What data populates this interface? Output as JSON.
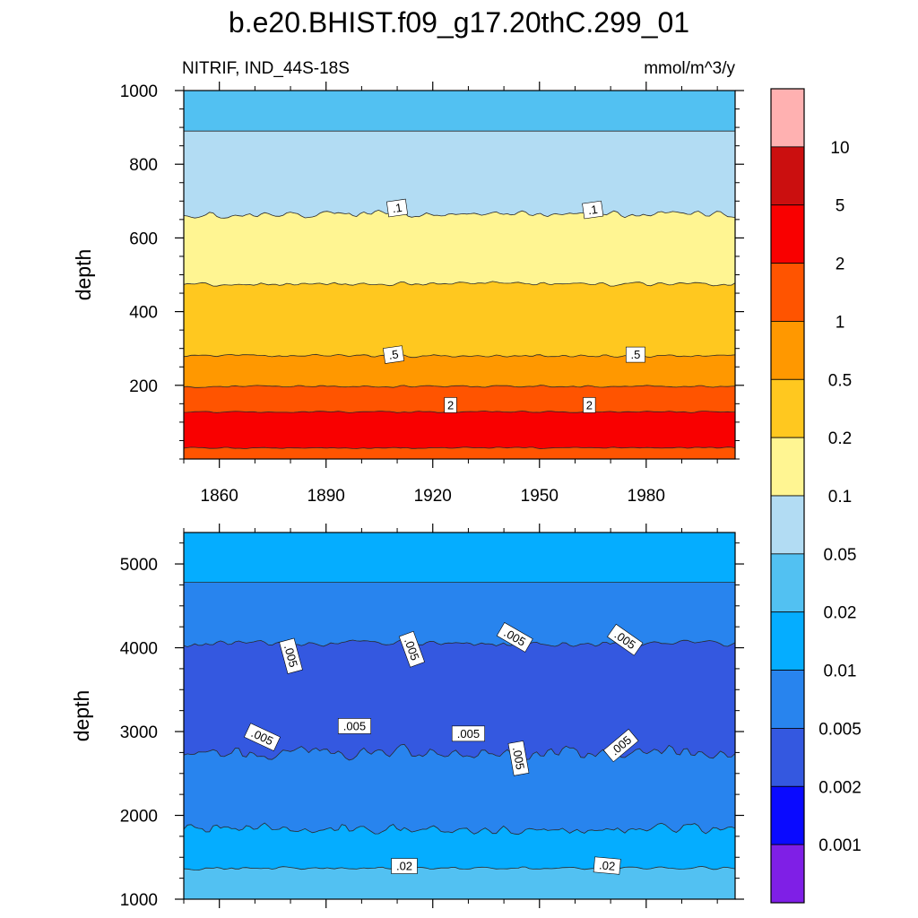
{
  "title": "b.e20.BHIST.f09_g17.20thC.299_01",
  "left_subtitle": "NITRIF, IND_44S-18S",
  "right_subtitle": "mmol/m^3/y",
  "colors": {
    "levels": [
      "#7f1fe6",
      "#0a0aff",
      "#3458e0",
      "#2884ee",
      "#05adff",
      "#52c1f2",
      "#b2dcf3",
      "#fff592",
      "#ffc81f",
      "#ff9800",
      "#ff5400",
      "#f90000",
      "#cb0f0f",
      "#ffb1b1"
    ]
  },
  "chart_data": [
    {
      "type": "heatmap",
      "subtype": "filled-contour",
      "panel": "upper",
      "xlabel": "",
      "ylabel": "depth",
      "xlim": [
        1850,
        2005
      ],
      "ylim": [
        1000,
        0
      ],
      "x_ticks": [
        1860,
        1890,
        1920,
        1950,
        1980
      ],
      "y_ticks": [
        200,
        400,
        600,
        800,
        1000
      ],
      "contour_bands": [
        {
          "top": 0,
          "bottom": 30,
          "color_index": 10,
          "roughness": 2
        },
        {
          "top": 30,
          "bottom": 128,
          "color_index": 11,
          "roughness": 3
        },
        {
          "top": 128,
          "bottom": 197,
          "color_index": 10,
          "roughness": 3
        },
        {
          "top": 197,
          "bottom": 280,
          "color_index": 9,
          "roughness": 4
        },
        {
          "top": 280,
          "bottom": 475,
          "color_index": 8,
          "roughness": 5
        },
        {
          "top": 475,
          "bottom": 665,
          "color_index": 7,
          "roughness": 8
        },
        {
          "top": 665,
          "bottom": 890,
          "color_index": 6,
          "roughness": 12
        },
        {
          "top": 890,
          "bottom": 1000,
          "color_index": 5,
          "roughness": 0
        }
      ],
      "contour_labels": [
        {
          "text": "2",
          "x": 1925,
          "y": 145,
          "angle": 0
        },
        {
          "text": "2",
          "x": 1964,
          "y": 145,
          "angle": 0
        },
        {
          "text": ".5",
          "x": 1909,
          "y": 282,
          "angle": -8
        },
        {
          "text": ".5",
          "x": 1977,
          "y": 282,
          "angle": 0
        },
        {
          "text": ".1",
          "x": 1910,
          "y": 680,
          "angle": -8
        },
        {
          "text": ".1",
          "x": 1965,
          "y": 675,
          "angle": -8
        }
      ]
    },
    {
      "type": "heatmap",
      "subtype": "filled-contour",
      "panel": "lower",
      "xlabel": "",
      "ylabel": "depth",
      "xlim": [
        1850,
        2005
      ],
      "ylim": [
        5375,
        1000
      ],
      "x_ticks": [
        1860,
        1890,
        1920,
        1950,
        1980
      ],
      "y_ticks": [
        1000,
        2000,
        3000,
        4000,
        5000
      ],
      "contour_bands": [
        {
          "top": 1000,
          "bottom": 1370,
          "color_index": 5,
          "roughness": 15
        },
        {
          "top": 1370,
          "bottom": 1840,
          "color_index": 4,
          "roughness": 25
        },
        {
          "top": 1840,
          "bottom": 2750,
          "color_index": 3,
          "roughness": 90
        },
        {
          "top": 2750,
          "bottom": 4050,
          "color_index": 2,
          "roughness": 110
        },
        {
          "top": 4050,
          "bottom": 4780,
          "color_index": 3,
          "roughness": 50
        },
        {
          "top": 4780,
          "bottom": 5375,
          "color_index": 4,
          "roughness": 0
        }
      ],
      "contour_labels": [
        {
          "text": ".02",
          "x": 1912,
          "y": 1390,
          "angle": 0
        },
        {
          "text": ".02",
          "x": 1969,
          "y": 1395,
          "angle": 5
        },
        {
          "text": ".005",
          "x": 1872,
          "y": 2930,
          "angle": 25
        },
        {
          "text": ".005",
          "x": 1898,
          "y": 3060,
          "angle": 0
        },
        {
          "text": ".005",
          "x": 1930,
          "y": 2970,
          "angle": 0
        },
        {
          "text": ".005",
          "x": 1944,
          "y": 2680,
          "angle": 80
        },
        {
          "text": ".005",
          "x": 1973,
          "y": 2830,
          "angle": -40
        },
        {
          "text": ".005",
          "x": 1880,
          "y": 3900,
          "angle": 75
        },
        {
          "text": ".005",
          "x": 1914,
          "y": 3980,
          "angle": 70
        },
        {
          "text": ".005",
          "x": 1943,
          "y": 4120,
          "angle": 30
        },
        {
          "text": ".005",
          "x": 1974,
          "y": 4090,
          "angle": 35
        }
      ]
    },
    {
      "type": "colorbar",
      "labels_top_to_bottom": [
        "10",
        "5",
        "2",
        "1",
        "0.5",
        "0.2",
        "0.1",
        "0.05",
        "0.02",
        "0.01",
        "0.005",
        "0.002",
        "0.001"
      ]
    }
  ]
}
